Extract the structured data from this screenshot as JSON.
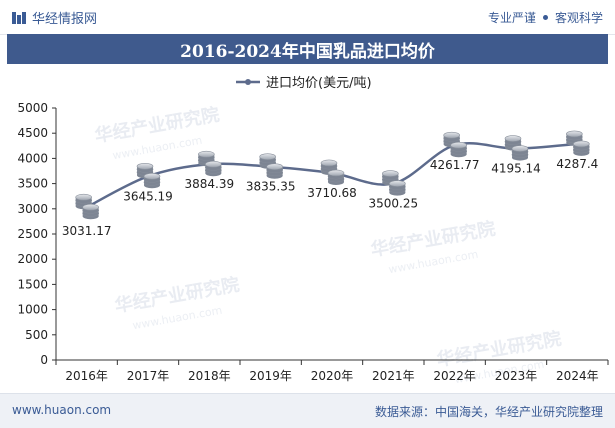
{
  "header": {
    "brand": "华经情报网",
    "tag_left": "专业严谨",
    "tag_right": "客观科学"
  },
  "footer": {
    "site": "www.huaon.com",
    "source": "数据来源：中国海关，华经产业研究院整理"
  },
  "watermark": {
    "text_cn": "华经产业研究院",
    "text_url": "www.huaon.com"
  },
  "colors": {
    "brand": "#3a5b95",
    "title_bg": "#3f5a8d",
    "line": "#5d6b8c",
    "grid": "#e5e5e5"
  },
  "chart_data": {
    "type": "line",
    "title": "2016-2024年中国乳品进口均价",
    "legend": "进口均价(美元/吨)",
    "legend_position": "top-center",
    "categories": [
      "2016年",
      "2017年",
      "2018年",
      "2019年",
      "2020年",
      "2021年",
      "2022年",
      "2023年",
      "2024年"
    ],
    "values": [
      3031.17,
      3645.19,
      3884.39,
      3835.35,
      3710.68,
      3500.25,
      4261.77,
      4195.14,
      4287.4
    ],
    "labels": [
      "3031.17",
      "3645.19",
      "3884.39",
      "3835.35",
      "3710.68",
      "3500.25",
      "4261.77",
      "4195.14",
      "4287.4"
    ],
    "yticks": [
      "0",
      "500",
      "1000",
      "1500",
      "2000",
      "2500",
      "3000",
      "3500",
      "4000",
      "4500",
      "5000"
    ],
    "ylim": [
      0,
      5000
    ],
    "grid": false,
    "marker": "coin-stack",
    "xlabel": "",
    "ylabel": ""
  }
}
